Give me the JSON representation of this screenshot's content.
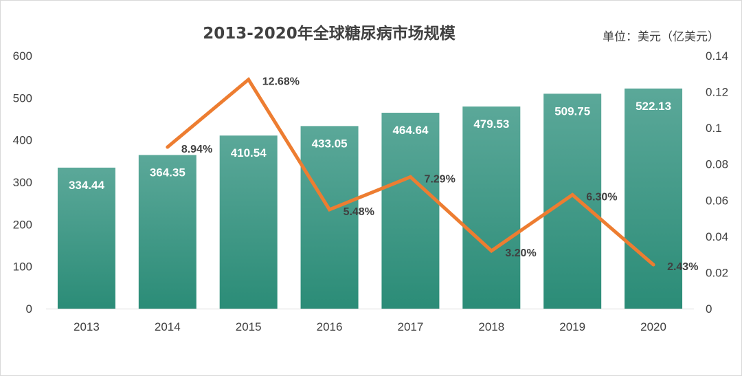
{
  "colors": {
    "bar_top": "#5ba899",
    "bar_bottom": "#2b8c77",
    "line": "#ed7d31",
    "axis": "#d9d9d9",
    "text": "#404040"
  },
  "chart_data": {
    "type": "bar",
    "title": "2013-2020年全球糖尿病市场规模",
    "unit_note": "单位：美元（亿美元）",
    "categories": [
      "2013",
      "2014",
      "2015",
      "2016",
      "2017",
      "2018",
      "2019",
      "2020"
    ],
    "series": [
      {
        "type": "bar",
        "axis": "left",
        "values": [
          334.44,
          364.35,
          410.54,
          433.05,
          464.64,
          479.53,
          509.75,
          522.13
        ],
        "labels": [
          "334.44",
          "364.35",
          "410.54",
          "433.05",
          "464.64",
          "479.53",
          "509.75",
          "522.13"
        ]
      },
      {
        "type": "line",
        "axis": "right",
        "values": [
          null,
          0.0894,
          0.1268,
          0.0548,
          0.0729,
          0.032,
          0.063,
          0.0243
        ],
        "labels": [
          "",
          "8.94%",
          "12.68%",
          "5.48%",
          "7.29%",
          "3.20%",
          "6.30%",
          "2.43%"
        ]
      }
    ],
    "y_left": {
      "min": 0,
      "max": 600,
      "ticks": [
        "0",
        "100",
        "200",
        "300",
        "400",
        "500",
        "600"
      ]
    },
    "y_right": {
      "min": 0,
      "max": 0.14,
      "ticks": [
        "0",
        "0.02",
        "0.04",
        "0.06",
        "0.08",
        "0.1",
        "0.12",
        "0.14"
      ]
    },
    "grid": false,
    "legend": "none"
  }
}
